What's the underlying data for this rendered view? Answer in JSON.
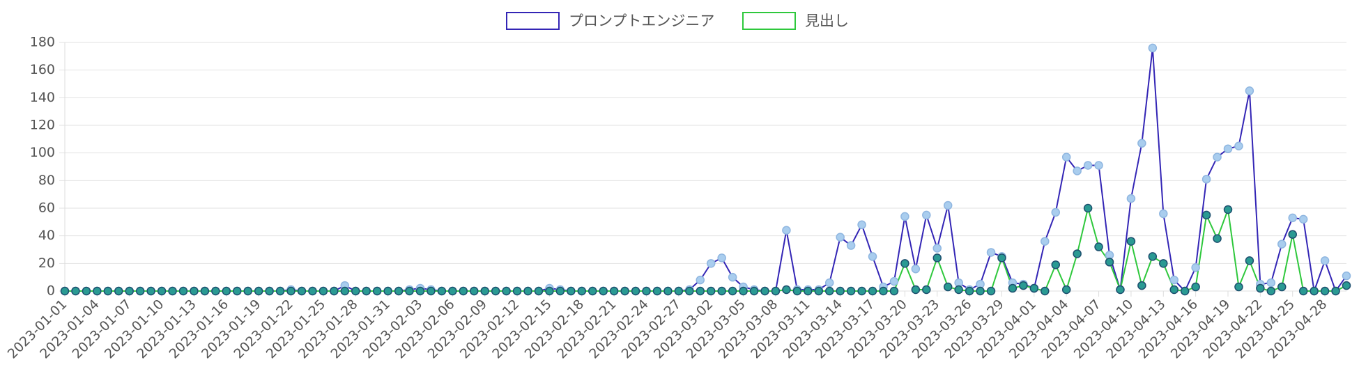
{
  "chart_data": {
    "type": "line",
    "categories": [
      "2023-01-01",
      null,
      null,
      "2023-01-04",
      null,
      null,
      "2023-01-07",
      null,
      null,
      "2023-01-10",
      null,
      null,
      "2023-01-13",
      null,
      null,
      "2023-01-16",
      null,
      null,
      "2023-01-19",
      null,
      null,
      "2023-01-22",
      null,
      null,
      "2023-01-25",
      null,
      null,
      "2023-01-28",
      null,
      null,
      "2023-01-31",
      null,
      null,
      "2023-02-03",
      null,
      null,
      "2023-02-06",
      null,
      null,
      "2023-02-09",
      null,
      null,
      "2023-02-12",
      null,
      null,
      "2023-02-15",
      null,
      null,
      "2023-02-18",
      null,
      null,
      "2023-02-21",
      null,
      null,
      "2023-02-24",
      null,
      null,
      "2023-02-27",
      null,
      null,
      "2023-03-02",
      null,
      null,
      "2023-03-05",
      null,
      null,
      "2023-03-08",
      null,
      null,
      "2023-03-11",
      null,
      null,
      "2023-03-14",
      null,
      null,
      "2023-03-17",
      null,
      null,
      "2023-03-20",
      null,
      null,
      "2023-03-23",
      null,
      null,
      "2023-03-26",
      null,
      null,
      "2023-03-29",
      null,
      null,
      "2023-04-01",
      null,
      null,
      "2023-04-04",
      null,
      null,
      "2023-04-07",
      null,
      null,
      "2023-04-10",
      null,
      null,
      "2023-04-13",
      null,
      null,
      "2023-04-16",
      null,
      null,
      "2023-04-19",
      null,
      null,
      "2023-04-22",
      null,
      null,
      "2023-04-25",
      null,
      null,
      "2023-04-28",
      null,
      null
    ],
    "series": [
      {
        "name": "プロンプトエンジニア",
        "color": "#3325b5",
        "point_color": "#a9cdee",
        "values": [
          0,
          0,
          0,
          0,
          0,
          0,
          0,
          0,
          0,
          0,
          0,
          0,
          0,
          0,
          0,
          0,
          0,
          0,
          0,
          0,
          0,
          1,
          0,
          0,
          0,
          0,
          4,
          0,
          0,
          0,
          0,
          0,
          1,
          2,
          1,
          0,
          0,
          0,
          0,
          0,
          0,
          0,
          0,
          0,
          0,
          2,
          1,
          0,
          0,
          0,
          0,
          0,
          0,
          0,
          0,
          0,
          0,
          0,
          1,
          8,
          20,
          24,
          10,
          3,
          1,
          0,
          0,
          44,
          1,
          1,
          1,
          6,
          39,
          33,
          48,
          25,
          3,
          7,
          54,
          16,
          55,
          31,
          62,
          6,
          1,
          5,
          28,
          25,
          6,
          5,
          2,
          36,
          57,
          97,
          87,
          91,
          91,
          26,
          1,
          67,
          107,
          176,
          56,
          8,
          0,
          17,
          81,
          97,
          103,
          105,
          145,
          5,
          6,
          34,
          53,
          52,
          0,
          22,
          0,
          11
        ]
      },
      {
        "name": "見出し",
        "color": "#2ec83c",
        "point_color": "#2a9a93",
        "values": [
          0,
          0,
          0,
          0,
          0,
          0,
          0,
          0,
          0,
          0,
          0,
          0,
          0,
          0,
          0,
          0,
          0,
          0,
          0,
          0,
          0,
          0,
          0,
          0,
          0,
          0,
          0,
          0,
          0,
          0,
          0,
          0,
          0,
          0,
          0,
          0,
          0,
          0,
          0,
          0,
          0,
          0,
          0,
          0,
          0,
          0,
          0,
          0,
          0,
          0,
          0,
          0,
          0,
          0,
          0,
          0,
          0,
          0,
          0,
          0,
          0,
          0,
          0,
          0,
          0,
          0,
          0,
          1,
          0,
          0,
          0,
          0,
          0,
          0,
          0,
          0,
          0,
          0,
          20,
          1,
          1,
          24,
          3,
          1,
          0,
          0,
          0,
          24,
          2,
          4,
          2,
          0,
          19,
          1,
          27,
          60,
          32,
          21,
          1,
          36,
          4,
          25,
          20,
          1,
          0,
          3,
          55,
          38,
          59,
          3,
          22,
          2,
          0,
          3,
          41,
          0,
          0,
          0,
          0,
          4
        ]
      }
    ],
    "ylim": [
      0,
      180
    ],
    "yticks": [
      0,
      20,
      40,
      60,
      80,
      100,
      120,
      140,
      160,
      180
    ],
    "grid": true,
    "legend": "top"
  }
}
